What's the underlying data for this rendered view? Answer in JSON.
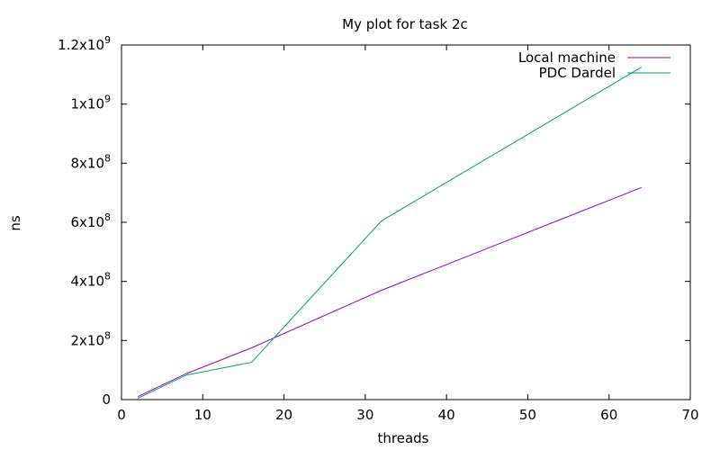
{
  "chart_data": {
    "type": "line",
    "title": "My plot for task 2c",
    "xlabel": "threads",
    "ylabel": "ns",
    "xlim": [
      0,
      70
    ],
    "ylim": [
      0,
      1200000000
    ],
    "xticks": [
      {
        "value": 0,
        "label": "0"
      },
      {
        "value": 10,
        "label": "10"
      },
      {
        "value": 20,
        "label": "20"
      },
      {
        "value": 30,
        "label": "30"
      },
      {
        "value": 40,
        "label": "40"
      },
      {
        "value": 50,
        "label": "50"
      },
      {
        "value": 60,
        "label": "60"
      },
      {
        "value": 70,
        "label": "70"
      }
    ],
    "yticks": [
      {
        "value": 0,
        "mantissa": "0",
        "exponent": ""
      },
      {
        "value": 200000000,
        "mantissa": "2x10",
        "exponent": "8"
      },
      {
        "value": 400000000,
        "mantissa": "4x10",
        "exponent": "8"
      },
      {
        "value": 600000000,
        "mantissa": "6x10",
        "exponent": "8"
      },
      {
        "value": 800000000,
        "mantissa": "8x10",
        "exponent": "8"
      },
      {
        "value": 1000000000,
        "mantissa": "1x10",
        "exponent": "9"
      },
      {
        "value": 1200000000,
        "mantissa": "1.2x10",
        "exponent": "9"
      }
    ],
    "grid": false,
    "legend_position": "top-right",
    "series": [
      {
        "name": "Local machine",
        "color": "#9400d3",
        "x": [
          2,
          8,
          16,
          32,
          64
        ],
        "y": [
          10000000,
          88000000,
          175000000,
          370000000,
          718000000
        ]
      },
      {
        "name": "PDC Dardel",
        "color": "#009e73",
        "x": [
          2,
          8,
          16,
          32,
          64
        ],
        "y": [
          5000000,
          83000000,
          126000000,
          605000000,
          1125000000
        ]
      }
    ]
  }
}
